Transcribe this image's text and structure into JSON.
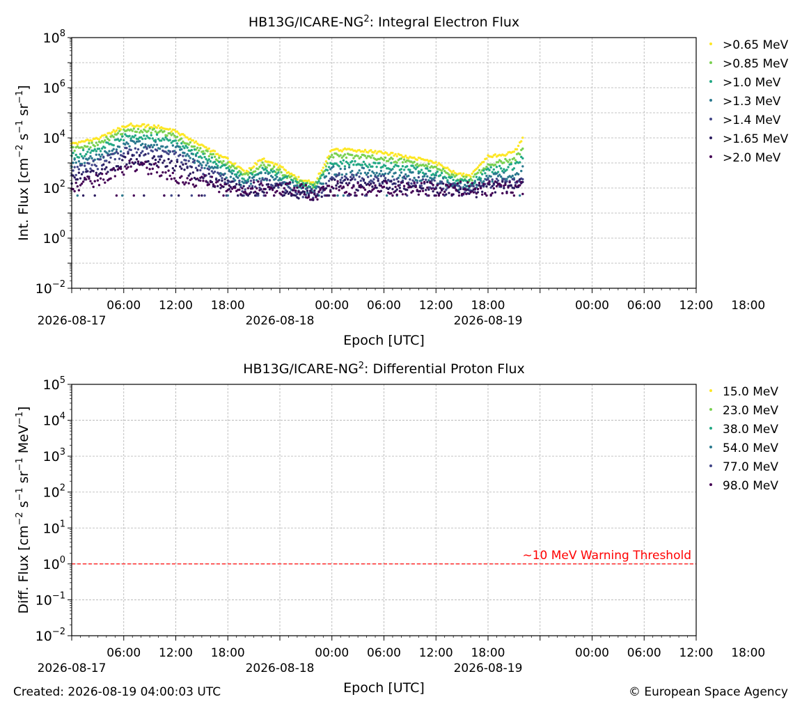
{
  "footer": {
    "created": "Created: 2026-08-19 04:00:03 UTC",
    "copyright": "© European Space Agency"
  },
  "x_axis_ticks": {
    "time_labels": [
      "06:00",
      "12:00",
      "18:00",
      "00:00",
      "06:00",
      "12:00",
      "18:00",
      "00:00",
      "06:00",
      "12:00",
      "18:00"
    ],
    "date_labels": [
      "2026-08-17",
      "2026-08-18",
      "2026-08-19"
    ]
  },
  "chart_data": [
    {
      "type": "scatter",
      "title_main": "HB13G/ICARE-NG",
      "title_sup": "2",
      "title_rest": ": Integral Electron Flux",
      "xlabel": "Epoch [UTC]",
      "ylabel_parts": [
        "Int. Flux [cm",
        "−2",
        " s",
        "−1",
        " sr",
        "−1",
        "]"
      ],
      "yscale": "log",
      "xlim": [
        "2026-08-17 00:00",
        "2026-08-20 00:00"
      ],
      "ylim": [
        0.01,
        100000000
      ],
      "ytick_exponents": [
        "-2",
        "0",
        "2",
        "4",
        "6",
        "8"
      ],
      "grid": true,
      "legend_position": "outside-right",
      "data_end": "2026-08-19 04:00",
      "series": [
        {
          "name": ">0.65 MeV",
          "color": "#fde725",
          "points": [
            [
              "2026-08-17 00:00",
              5500
            ],
            [
              "2026-08-17 03:00",
              9000
            ],
            [
              "2026-08-17 06:30",
              33000
            ],
            [
              "2026-08-17 10:00",
              28000
            ],
            [
              "2026-08-17 12:00",
              18000
            ],
            [
              "2026-08-17 15:00",
              5000
            ],
            [
              "2026-08-17 18:00",
              1400
            ],
            [
              "2026-08-17 20:00",
              400
            ],
            [
              "2026-08-17 22:00",
              1500
            ],
            [
              "2026-08-18 00:00",
              700
            ],
            [
              "2026-08-18 02:00",
              250
            ],
            [
              "2026-08-18 04:00",
              150
            ],
            [
              "2026-08-18 05:00",
              700
            ],
            [
              "2026-08-18 06:00",
              3500
            ],
            [
              "2026-08-18 10:00",
              3000
            ],
            [
              "2026-08-18 14:00",
              2000
            ],
            [
              "2026-08-18 18:00",
              1000
            ],
            [
              "2026-08-18 20:30",
              350
            ],
            [
              "2026-08-18 22:00",
              300
            ],
            [
              "2026-08-19 00:00",
              1800
            ],
            [
              "2026-08-19 03:00",
              2500
            ],
            [
              "2026-08-19 04:00",
              9000
            ]
          ]
        },
        {
          "name": ">0.85 MeV",
          "color": "#7ad151",
          "points": [
            [
              "2026-08-17 00:00",
              3500
            ],
            [
              "2026-08-17 03:00",
              6000
            ],
            [
              "2026-08-17 06:30",
              22000
            ],
            [
              "2026-08-17 10:00",
              18000
            ],
            [
              "2026-08-17 12:00",
              11000
            ],
            [
              "2026-08-17 15:00",
              3200
            ],
            [
              "2026-08-17 18:00",
              900
            ],
            [
              "2026-08-17 20:00",
              300
            ],
            [
              "2026-08-17 22:00",
              900
            ],
            [
              "2026-08-18 00:00",
              450
            ],
            [
              "2026-08-18 02:00",
              180
            ],
            [
              "2026-08-18 04:00",
              120
            ],
            [
              "2026-08-18 05:00",
              450
            ],
            [
              "2026-08-18 06:00",
              2000
            ],
            [
              "2026-08-18 10:00",
              1800
            ],
            [
              "2026-08-18 14:00",
              1200
            ],
            [
              "2026-08-18 18:00",
              650
            ],
            [
              "2026-08-18 20:30",
              250
            ],
            [
              "2026-08-18 22:00",
              220
            ],
            [
              "2026-08-19 00:00",
              900
            ],
            [
              "2026-08-19 03:00",
              1300
            ],
            [
              "2026-08-19 04:00",
              3500
            ]
          ]
        },
        {
          "name": ">1.0 MeV",
          "color": "#22a884",
          "points": [
            [
              "2026-08-17 00:00",
              1800
            ],
            [
              "2026-08-17 03:00",
              3500
            ],
            [
              "2026-08-17 06:30",
              12000
            ],
            [
              "2026-08-17 10:00",
              10000
            ],
            [
              "2026-08-17 12:00",
              6500
            ],
            [
              "2026-08-17 15:00",
              2000
            ],
            [
              "2026-08-17 18:00",
              600
            ],
            [
              "2026-08-17 20:00",
              220
            ],
            [
              "2026-08-17 22:00",
              500
            ],
            [
              "2026-08-18 00:00",
              300
            ],
            [
              "2026-08-18 02:00",
              130
            ],
            [
              "2026-08-18 04:00",
              100
            ],
            [
              "2026-08-18 05:00",
              300
            ],
            [
              "2026-08-18 06:00",
              1000
            ],
            [
              "2026-08-18 10:00",
              900
            ],
            [
              "2026-08-18 14:00",
              700
            ],
            [
              "2026-08-18 18:00",
              400
            ],
            [
              "2026-08-18 20:30",
              180
            ],
            [
              "2026-08-18 22:00",
              160
            ],
            [
              "2026-08-19 00:00",
              500
            ],
            [
              "2026-08-19 03:00",
              700
            ],
            [
              "2026-08-19 04:00",
              1800
            ]
          ]
        },
        {
          "name": ">1.3 MeV",
          "color": "#2a788e",
          "points": [
            [
              "2026-08-17 00:00",
              900
            ],
            [
              "2026-08-17 03:00",
              1800
            ],
            [
              "2026-08-17 06:30",
              5500
            ],
            [
              "2026-08-17 10:00",
              5000
            ],
            [
              "2026-08-17 12:00",
              3500
            ],
            [
              "2026-08-17 15:00",
              1000
            ],
            [
              "2026-08-17 18:00",
              350
            ],
            [
              "2026-08-17 20:00",
              150
            ],
            [
              "2026-08-17 22:00",
              300
            ],
            [
              "2026-08-18 00:00",
              180
            ],
            [
              "2026-08-18 02:00",
              100
            ],
            [
              "2026-08-18 04:00",
              80
            ],
            [
              "2026-08-18 05:00",
              180
            ],
            [
              "2026-08-18 06:00",
              500
            ],
            [
              "2026-08-18 10:00",
              450
            ],
            [
              "2026-08-18 14:00",
              350
            ],
            [
              "2026-08-18 18:00",
              220
            ],
            [
              "2026-08-18 20:30",
              120
            ],
            [
              "2026-08-18 22:00",
              110
            ],
            [
              "2026-08-19 00:00",
              250
            ],
            [
              "2026-08-19 03:00",
              330
            ],
            [
              "2026-08-19 04:00",
              700
            ]
          ]
        },
        {
          "name": ">1.4 MeV",
          "color": "#414487",
          "points": [
            [
              "2026-08-17 00:00",
              450
            ],
            [
              "2026-08-17 03:00",
              900
            ],
            [
              "2026-08-17 06:30",
              3000
            ],
            [
              "2026-08-17 10:00",
              2700
            ],
            [
              "2026-08-17 12:00",
              1800
            ],
            [
              "2026-08-17 15:00",
              600
            ],
            [
              "2026-08-17 18:00",
              200
            ],
            [
              "2026-08-17 20:00",
              100
            ],
            [
              "2026-08-17 22:00",
              180
            ],
            [
              "2026-08-18 00:00",
              120
            ],
            [
              "2026-08-18 02:00",
              70
            ],
            [
              "2026-08-18 04:00",
              60
            ],
            [
              "2026-08-18 05:00",
              110
            ],
            [
              "2026-08-18 06:00",
              250
            ],
            [
              "2026-08-18 10:00",
              230
            ],
            [
              "2026-08-18 14:00",
              200
            ],
            [
              "2026-08-18 18:00",
              150
            ],
            [
              "2026-08-18 20:30",
              90
            ],
            [
              "2026-08-18 22:00",
              80
            ],
            [
              "2026-08-19 00:00",
              150
            ],
            [
              "2026-08-19 03:00",
              180
            ],
            [
              "2026-08-19 04:00",
              300
            ]
          ]
        },
        {
          "name": ">1.65 MeV",
          "color": "#2a1a5e",
          "points": [
            [
              "2026-08-17 00:00",
              200
            ],
            [
              "2026-08-17 03:00",
              400
            ],
            [
              "2026-08-17 06:30",
              1500
            ],
            [
              "2026-08-17 10:00",
              1300
            ],
            [
              "2026-08-17 12:00",
              800
            ],
            [
              "2026-08-17 15:00",
              300
            ],
            [
              "2026-08-17 18:00",
              120
            ],
            [
              "2026-08-17 20:00",
              70
            ],
            [
              "2026-08-17 22:00",
              110
            ],
            [
              "2026-08-18 00:00",
              90
            ],
            [
              "2026-08-18 02:00",
              60
            ],
            [
              "2026-08-18 04:00",
              50
            ],
            [
              "2026-08-18 05:00",
              80
            ],
            [
              "2026-08-18 06:00",
              140
            ],
            [
              "2026-08-18 10:00",
              130
            ],
            [
              "2026-08-18 14:00",
              120
            ],
            [
              "2026-08-18 18:00",
              100
            ],
            [
              "2026-08-18 20:30",
              70
            ],
            [
              "2026-08-18 22:00",
              60
            ],
            [
              "2026-08-19 00:00",
              100
            ],
            [
              "2026-08-19 03:00",
              110
            ],
            [
              "2026-08-19 04:00",
              150
            ]
          ]
        },
        {
          "name": ">2.0 MeV",
          "color": "#440154",
          "points": [
            [
              "2026-08-17 00:00",
              100
            ],
            [
              "2026-08-17 03:00",
              200
            ],
            [
              "2026-08-17 06:30",
              700
            ],
            [
              "2026-08-17 10:00",
              600
            ],
            [
              "2026-08-17 12:00",
              200
            ],
            [
              "2026-08-17 15:00",
              200
            ],
            [
              "2026-08-17 18:00",
              100
            ],
            [
              "2026-08-17 20:00",
              100
            ],
            [
              "2026-08-17 22:00",
              100
            ],
            [
              "2026-08-18 00:00",
              100
            ],
            [
              "2026-08-18 02:00",
              100
            ],
            [
              "2026-08-18 04:00",
              50
            ],
            [
              "2026-08-18 05:00",
              100
            ],
            [
              "2026-08-18 06:00",
              100
            ],
            [
              "2026-08-18 10:00",
              100
            ],
            [
              "2026-08-18 14:00",
              100
            ],
            [
              "2026-08-18 18:00",
              100
            ],
            [
              "2026-08-18 20:30",
              100
            ],
            [
              "2026-08-18 22:00",
              100
            ],
            [
              "2026-08-19 00:00",
              100
            ],
            [
              "2026-08-19 03:00",
              100
            ],
            [
              "2026-08-19 04:00",
              100
            ]
          ]
        }
      ]
    },
    {
      "type": "scatter",
      "title_main": "HB13G/ICARE-NG",
      "title_sup": "2",
      "title_rest": ": Differential Proton Flux",
      "xlabel": "Epoch [UTC]",
      "ylabel_parts": [
        "Diff. Flux [cm",
        "−2",
        " s",
        "−1",
        " sr",
        "−1",
        " MeV",
        "−1",
        "]"
      ],
      "yscale": "log",
      "xlim": [
        "2026-08-17 00:00",
        "2026-08-20 00:00"
      ],
      "ylim": [
        0.01,
        100000
      ],
      "ytick_exponents": [
        "-2",
        "-1",
        "0",
        "1",
        "2",
        "3",
        "4",
        "5"
      ],
      "grid": true,
      "legend_position": "outside-right",
      "threshold": {
        "value": 1,
        "label": "∼10 MeV Warning Threshold",
        "color": "#ff0000",
        "style": "dashed"
      },
      "series": [
        {
          "name": "15.0 MeV",
          "color": "#fde725",
          "points": []
        },
        {
          "name": "23.0 MeV",
          "color": "#7ad151",
          "points": []
        },
        {
          "name": "38.0 MeV",
          "color": "#22a884",
          "points": []
        },
        {
          "name": "54.0 MeV",
          "color": "#2a788e",
          "points": []
        },
        {
          "name": "77.0 MeV",
          "color": "#414487",
          "points": []
        },
        {
          "name": "98.0 MeV",
          "color": "#440154",
          "points": []
        }
      ]
    }
  ]
}
